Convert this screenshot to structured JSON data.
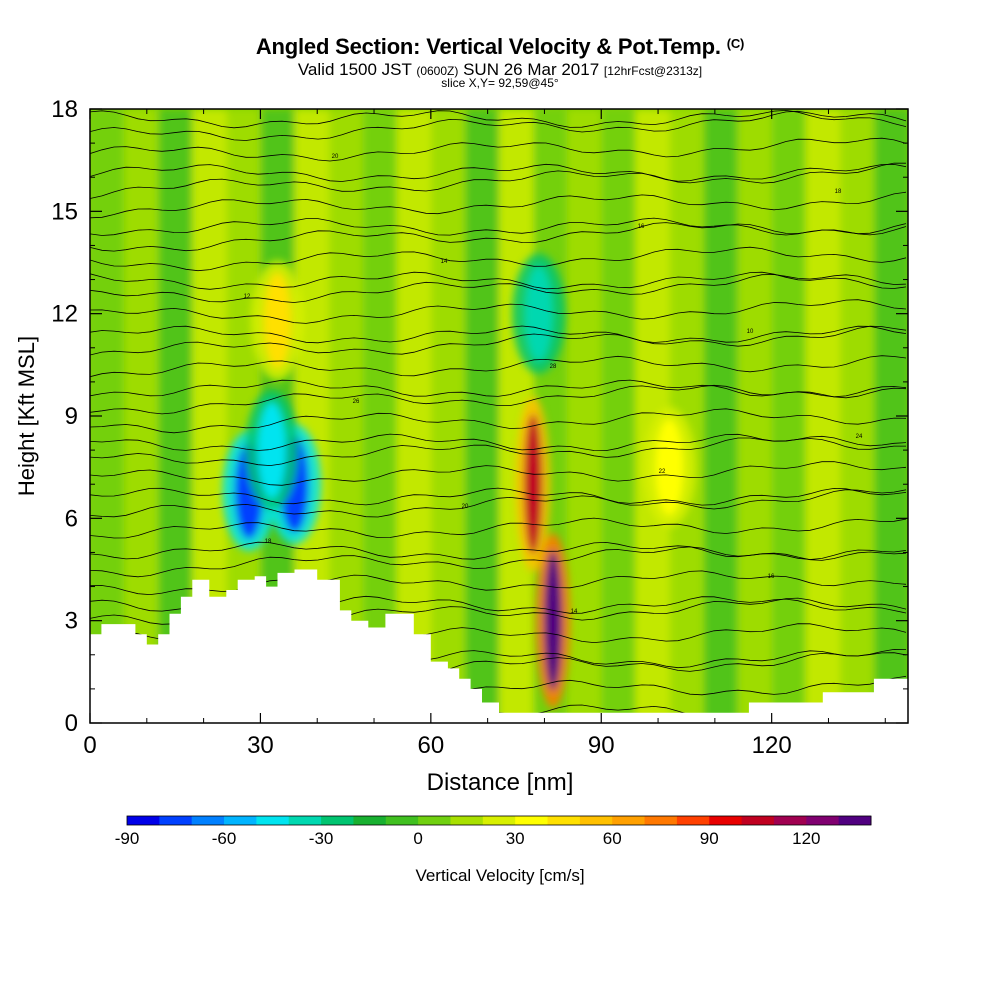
{
  "header": {
    "title_main": "Angled Section: Vertical Velocity & Pot.Temp.",
    "title_code": "(C)",
    "valid_prefix": "Valid 1500 JST",
    "valid_z": "(0600Z)",
    "valid_date": "SUN 26 Mar 2017",
    "forecast": "[12hrFcst@2313z]",
    "slice": "slice X,Y= 92,59@45°"
  },
  "chart_data": {
    "type": "heatmap",
    "title": "Angled Section: Vertical Velocity & Pot.Temp.",
    "xlabel": "Distance [nm]",
    "ylabel": "Height [Kft MSL]",
    "xlim": [
      0,
      144
    ],
    "ylim": [
      0,
      18
    ],
    "x_ticks": [
      "0",
      "30",
      "60",
      "90",
      "120"
    ],
    "y_ticks": [
      "0",
      "3",
      "6",
      "9",
      "12",
      "15",
      "18"
    ],
    "colorbar": {
      "label": "Vertical Velocity [cm/s]",
      "tick_labels": [
        "-90",
        "-60",
        "-30",
        "0",
        "30",
        "60",
        "90",
        "120"
      ],
      "tick_values": [
        -90,
        -60,
        -30,
        0,
        30,
        60,
        90,
        120
      ],
      "min": -90,
      "max": 140,
      "colors": [
        "#0000e8",
        "#0040ff",
        "#0080ff",
        "#00b4ff",
        "#00e4f0",
        "#00d8b0",
        "#00c470",
        "#18b030",
        "#40c020",
        "#70d010",
        "#a8e000",
        "#d8f000",
        "#ffff00",
        "#ffe000",
        "#ffc000",
        "#ffa000",
        "#ff7800",
        "#ff4000",
        "#e80000",
        "#c00020",
        "#a00050",
        "#800070",
        "#500080"
      ]
    },
    "velocity_features": [
      {
        "x": 28,
        "y": 6.8,
        "value": -80
      },
      {
        "x": 36,
        "y": 7.0,
        "value": -75
      },
      {
        "x": 32,
        "y": 8.0,
        "value": -45
      },
      {
        "x": 33,
        "y": 11.8,
        "value": 45
      },
      {
        "x": 78,
        "y": 7.0,
        "value": 105
      },
      {
        "x": 81.5,
        "y": 3.0,
        "value": 135
      },
      {
        "x": 79,
        "y": 12.0,
        "value": -40
      },
      {
        "x": 102,
        "y": 7.5,
        "value": 40
      }
    ],
    "theta_contour_labels": [
      "10",
      "12",
      "14",
      "16",
      "18",
      "20",
      "22",
      "24",
      "26",
      "28"
    ]
  }
}
